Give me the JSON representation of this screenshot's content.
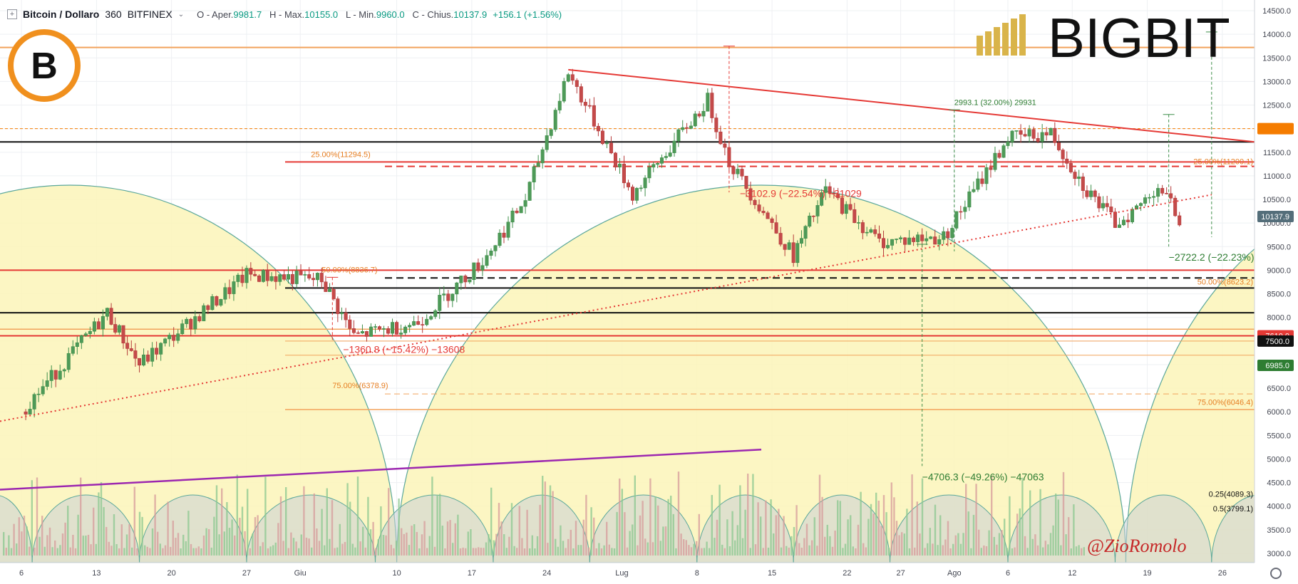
{
  "header": {
    "symbol": "Bitcoin / Dollaro",
    "interval": "360",
    "exchange": "BITFINEX",
    "open_label": "O - Aper.",
    "open": "9981.7",
    "high_label": "H - Max.",
    "high": "10155.0",
    "low_label": "L - Min.",
    "low": "9960.0",
    "close_label": "C - Chius.",
    "close": "10137.9",
    "change": "+156.1 (+1.56%)"
  },
  "watermark": {
    "brand": "BIGBIT",
    "signature": "@ZioRomolo",
    "logo_letter": "B"
  },
  "colors": {
    "up": "#3f8f4a",
    "down": "#b53a3a",
    "resistance": "#e53935",
    "support": "#111111",
    "fib": "#f2a35c",
    "trendline": "#e53935",
    "purple": "#9c27b0",
    "cycle_fill": "#fbf4b8",
    "cycle_stroke": "#5aa79a",
    "bg": "#ffffff",
    "grid": "#eef0f3"
  },
  "chart_data": {
    "type": "candlestick",
    "title": "Bitcoin / Dollaro 360 BITFINEX",
    "ylim": [
      2800,
      14800
    ],
    "y_ticks": [
      3000,
      3500,
      4000,
      4500,
      5000,
      5500,
      6000,
      6500,
      7000,
      7500,
      8000,
      8500,
      9000,
      9500,
      10000,
      10500,
      11000,
      11500,
      12000,
      12500,
      13000,
      13500,
      14000,
      14500
    ],
    "x_ticks": [
      "6",
      "13",
      "20",
      "27",
      "Giu",
      "10",
      "17",
      "24",
      "Lug",
      "8",
      "15",
      "22",
      "27",
      "Ago",
      "6",
      "12",
      "19",
      "26"
    ],
    "last_price": "10137.9",
    "key_points": [
      {
        "date": "2019-05-06",
        "price": 6000
      },
      {
        "date": "2019-05-14",
        "price": 8100
      },
      {
        "date": "2019-05-17",
        "price": 7000
      },
      {
        "date": "2019-05-27",
        "price": 8900
      },
      {
        "date": "2019-06-03",
        "price": 8800
      },
      {
        "date": "2019-06-06",
        "price": 7600
      },
      {
        "date": "2019-06-12",
        "price": 7900
      },
      {
        "date": "2019-06-18",
        "price": 9200
      },
      {
        "date": "2019-06-22",
        "price": 10500
      },
      {
        "date": "2019-06-26",
        "price": 13200
      },
      {
        "date": "2019-07-02",
        "price": 10600
      },
      {
        "date": "2019-07-09",
        "price": 12600
      },
      {
        "date": "2019-07-11",
        "price": 11300
      },
      {
        "date": "2019-07-17",
        "price": 9300
      },
      {
        "date": "2019-07-20",
        "price": 10700
      },
      {
        "date": "2019-07-25",
        "price": 9600
      },
      {
        "date": "2019-07-31",
        "price": 9700
      },
      {
        "date": "2019-08-06",
        "price": 11800
      },
      {
        "date": "2019-08-10",
        "price": 11900
      },
      {
        "date": "2019-08-13",
        "price": 10800
      },
      {
        "date": "2019-08-16",
        "price": 10000
      },
      {
        "date": "2019-08-18",
        "price": 10300
      },
      {
        "date": "2019-08-20",
        "price": 10800
      },
      {
        "date": "2019-08-22",
        "price": 10100
      }
    ],
    "price_badges": [
      {
        "price": 12000,
        "label": "",
        "color": "#f57c00"
      },
      {
        "price": 10137.9,
        "label": "10137.9",
        "color": "#546e7a"
      },
      {
        "price": 7610,
        "label": "7610.0",
        "color": "#e53935"
      },
      {
        "price": 7500,
        "label": "7500.0",
        "color": "#111111"
      },
      {
        "price": 6985,
        "label": "6985.0",
        "color": "#2e7d32"
      }
    ],
    "annotations": [
      {
        "text": "2993.1 (32.00%) 29931",
        "date": "2019-08-01",
        "price": 12500
      },
      {
        "text": "25.00%(11294.5)",
        "date": "2019-06-02",
        "price": 11400
      },
      {
        "text": "25.00%(11200.1)",
        "date": "2019-08-24",
        "price": 11250
      },
      {
        "text": "−3102.9 (−22.54%) −31029",
        "date": "2019-07-12",
        "price": 10550
      },
      {
        "text": "−2722.2 (−22.23%) −27222",
        "date": "2019-08-21",
        "price": 9200
      },
      {
        "text": "50.00%(8836.7)",
        "date": "2019-06-03",
        "price": 8950
      },
      {
        "text": "50.00%(8623.2)",
        "date": "2019-08-24",
        "price": 8700
      },
      {
        "text": "−1360.8 (−15.42%) −13608",
        "date": "2019-06-05",
        "price": 7250
      },
      {
        "text": "75.00%(6378.9)",
        "date": "2019-06-04",
        "price": 6500
      },
      {
        "text": "75.00%(6046.4)",
        "date": "2019-08-24",
        "price": 6150
      },
      {
        "text": "−4706.3 (−49.26%) −47063",
        "date": "2019-07-29",
        "price": 4550
      },
      {
        "text": "0.25(4089.3)",
        "date": "2019-08-24",
        "price": 4200
      },
      {
        "text": "0.5(3799.1)",
        "date": "2019-08-24",
        "price": 3890
      }
    ]
  }
}
